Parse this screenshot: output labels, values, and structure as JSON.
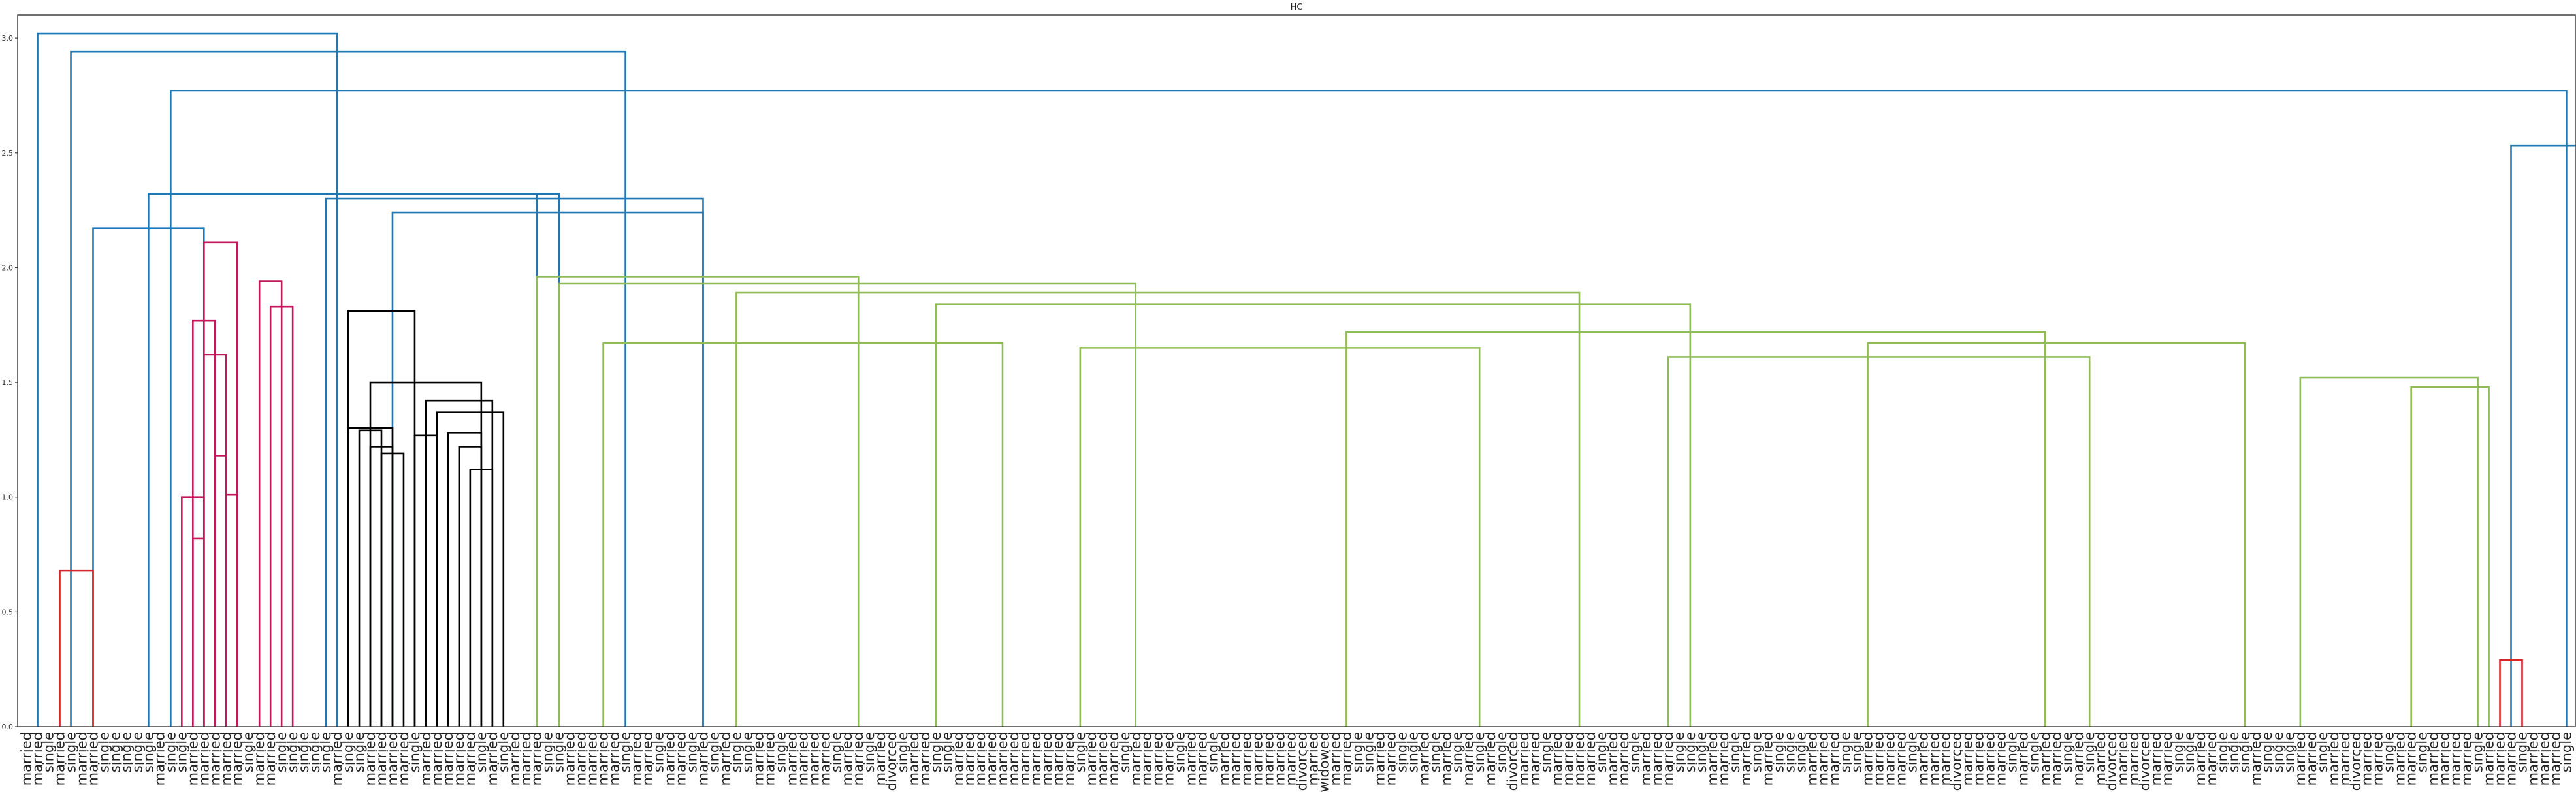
{
  "chart_data": {
    "type": "dendrogram",
    "title": "HC",
    "ylim": [
      0,
      3.1
    ],
    "yticks": [
      0.0,
      0.5,
      1.0,
      1.5,
      2.0,
      2.5,
      3.0
    ],
    "grid": false,
    "colors": {
      "cluster_red": "#d62728",
      "cluster_magenta": "#c2185b",
      "cluster_black": "#000000",
      "cluster_green": "#8fbc56",
      "cluster_light_blue": "#7ec8e3",
      "above_threshold": "#1f77b4"
    },
    "leaf_labels": [
      "married",
      "married",
      "single",
      "married",
      "single",
      "married",
      "married",
      "single",
      "single",
      "single",
      "single",
      "single",
      "married",
      "single",
      "single",
      "married",
      "married",
      "married",
      "married",
      "married",
      "single",
      "married",
      "married",
      "single",
      "single",
      "single",
      "single",
      "single",
      "married",
      "single",
      "single",
      "married",
      "married",
      "married",
      "married",
      "single",
      "married",
      "married",
      "married",
      "married",
      "married",
      "single",
      "married",
      "single",
      "married",
      "married",
      "married",
      "single",
      "single",
      "married",
      "married",
      "married",
      "married",
      "married",
      "single",
      "married",
      "married",
      "single",
      "married",
      "married",
      "single",
      "married",
      "single",
      "married",
      "single",
      "single",
      "married",
      "married",
      "single",
      "married",
      "married",
      "married",
      "married",
      "single",
      "married",
      "married",
      "single",
      "married",
      "divorced",
      "single",
      "married",
      "married",
      "single",
      "single",
      "married",
      "married",
      "married",
      "married",
      "married",
      "married",
      "married",
      "married",
      "married",
      "married",
      "married",
      "single",
      "married",
      "married",
      "married",
      "single",
      "married",
      "married",
      "married",
      "married",
      "single",
      "married",
      "married",
      "single",
      "married",
      "married",
      "married",
      "married",
      "married",
      "married",
      "married",
      "divorced",
      "married",
      "widowed",
      "married",
      "married",
      "single",
      "single",
      "married",
      "married",
      "single",
      "single",
      "married",
      "single",
      "married",
      "single",
      "married",
      "single",
      "married",
      "single",
      "divorced",
      "married",
      "married",
      "single",
      "married",
      "married",
      "married",
      "married",
      "single",
      "married",
      "married",
      "single",
      "married",
      "married",
      "married",
      "single",
      "single",
      "single",
      "married",
      "married",
      "single",
      "married",
      "single",
      "married",
      "single",
      "single",
      "single",
      "married",
      "married",
      "married",
      "single",
      "single",
      "married",
      "married",
      "married",
      "married",
      "single",
      "married",
      "married",
      "married",
      "divorced",
      "married",
      "married",
      "married",
      "married",
      "single",
      "married",
      "single",
      "married",
      "married",
      "single",
      "married",
      "single",
      "married",
      "divorced",
      "married",
      "married",
      "divorced",
      "married",
      "married",
      "single",
      "single",
      "married",
      "married",
      "single",
      "single",
      "single",
      "married",
      "single",
      "single",
      "single",
      "married",
      "married",
      "single",
      "married",
      "married",
      "divorced",
      "married",
      "married",
      "single",
      "married",
      "married",
      "single",
      "married",
      "married",
      "married",
      "married",
      "single",
      "married",
      "married",
      "married",
      "single",
      "married",
      "married",
      "married",
      "single"
    ],
    "links": [
      {
        "x": [
          1,
          28
        ],
        "y": [
          3.02,
          3.02
        ],
        "color": "above_threshold"
      },
      {
        "x": [
          4,
          54
        ],
        "y": [
          2.94,
          2.94
        ],
        "color": "above_threshold"
      },
      {
        "x": [
          13,
          229
        ],
        "y": [
          2.77,
          2.77
        ],
        "color": "above_threshold"
      },
      {
        "x": [
          11,
          48
        ],
        "y": [
          2.32,
          2.32
        ],
        "color": "above_threshold"
      },
      {
        "x": [
          6,
          16
        ],
        "y": [
          2.17,
          2.17
        ],
        "color": "above_threshold"
      },
      {
        "x": [
          28,
          46
        ],
        "y": [
          2.32,
          2.32
        ],
        "color": "above_threshold"
      },
      {
        "x": [
          27,
          61
        ],
        "y": [
          2.3,
          2.3
        ],
        "color": "above_threshold"
      },
      {
        "x": [
          33,
          61
        ],
        "y": [
          2.24,
          2.24
        ],
        "color": "above_threshold"
      },
      {
        "x": [
          224,
          235
        ],
        "y": [
          2.53,
          2.53
        ],
        "color": "above_threshold"
      },
      {
        "x": [
          3,
          6
        ],
        "y": [
          0.68,
          0.68
        ],
        "color": "cluster_red"
      },
      {
        "x": [
          223,
          225
        ],
        "y": [
          0.29,
          0.29
        ],
        "color": "cluster_red"
      },
      {
        "x": [
          16,
          19
        ],
        "y": [
          2.11,
          2.11
        ],
        "color": "cluster_magenta"
      },
      {
        "x": [
          15,
          17
        ],
        "y": [
          1.77,
          1.77
        ],
        "color": "cluster_magenta"
      },
      {
        "x": [
          16,
          18
        ],
        "y": [
          1.62,
          1.62
        ],
        "color": "cluster_magenta"
      },
      {
        "x": [
          14,
          16
        ],
        "y": [
          1.0,
          1.0
        ],
        "color": "cluster_magenta"
      },
      {
        "x": [
          15,
          16
        ],
        "y": [
          0.82,
          0.82
        ],
        "color": "cluster_magenta"
      },
      {
        "x": [
          17,
          18
        ],
        "y": [
          1.18,
          1.18
        ],
        "color": "cluster_magenta"
      },
      {
        "x": [
          18,
          19
        ],
        "y": [
          1.01,
          1.01
        ],
        "color": "cluster_magenta"
      },
      {
        "x": [
          21,
          23
        ],
        "y": [
          1.94,
          1.94
        ],
        "color": "cluster_magenta"
      },
      {
        "x": [
          22,
          24
        ],
        "y": [
          1.83,
          1.83
        ],
        "color": "cluster_magenta"
      },
      {
        "x": [
          29,
          35
        ],
        "y": [
          1.81,
          1.81
        ],
        "color": "cluster_black"
      },
      {
        "x": [
          31,
          41
        ],
        "y": [
          1.5,
          1.5
        ],
        "color": "cluster_black"
      },
      {
        "x": [
          29,
          33
        ],
        "y": [
          1.3,
          1.3
        ],
        "color": "cluster_black"
      },
      {
        "x": [
          30,
          32
        ],
        "y": [
          1.29,
          1.29
        ],
        "color": "cluster_black"
      },
      {
        "x": [
          31,
          33
        ],
        "y": [
          1.22,
          1.22
        ],
        "color": "cluster_black"
      },
      {
        "x": [
          32,
          34
        ],
        "y": [
          1.19,
          1.19
        ],
        "color": "cluster_black"
      },
      {
        "x": [
          36,
          42
        ],
        "y": [
          1.42,
          1.42
        ],
        "color": "cluster_black"
      },
      {
        "x": [
          37,
          43
        ],
        "y": [
          1.37,
          1.37
        ],
        "color": "cluster_black"
      },
      {
        "x": [
          35,
          37
        ],
        "y": [
          1.27,
          1.27
        ],
        "color": "cluster_black"
      },
      {
        "x": [
          38,
          41
        ],
        "y": [
          1.28,
          1.28
        ],
        "color": "cluster_black"
      },
      {
        "x": [
          39,
          41
        ],
        "y": [
          1.22,
          1.22
        ],
        "color": "cluster_black"
      },
      {
        "x": [
          40,
          42
        ],
        "y": [
          1.12,
          1.12
        ],
        "color": "cluster_black"
      },
      {
        "x": [
          46,
          75
        ],
        "y": [
          1.96,
          1.96
        ],
        "color": "cluster_green"
      },
      {
        "x": [
          48,
          100
        ],
        "y": [
          1.93,
          1.93
        ],
        "color": "cluster_green"
      },
      {
        "x": [
          64,
          140
        ],
        "y": [
          1.89,
          1.89
        ],
        "color": "cluster_green"
      },
      {
        "x": [
          82,
          150
        ],
        "y": [
          1.84,
          1.84
        ],
        "color": "cluster_green"
      },
      {
        "x": [
          119,
          182
        ],
        "y": [
          1.72,
          1.72
        ],
        "color": "cluster_green"
      },
      {
        "x": [
          52,
          88
        ],
        "y": [
          1.67,
          1.67
        ],
        "color": "cluster_green"
      },
      {
        "x": [
          95,
          131
        ],
        "y": [
          1.65,
          1.65
        ],
        "color": "cluster_green"
      },
      {
        "x": [
          166,
          200
        ],
        "y": [
          1.67,
          1.67
        ],
        "color": "cluster_green"
      },
      {
        "x": [
          148,
          186
        ],
        "y": [
          1.61,
          1.61
        ],
        "color": "cluster_green"
      },
      {
        "x": [
          205,
          221
        ],
        "y": [
          1.52,
          1.52
        ],
        "color": "cluster_green"
      },
      {
        "x": [
          215,
          222
        ],
        "y": [
          1.48,
          1.48
        ],
        "color": "cluster_green"
      },
      {
        "x": [
          235,
          236
        ],
        "y": [
          0.07,
          0.07
        ],
        "color": "cluster_light_blue"
      }
    ]
  }
}
